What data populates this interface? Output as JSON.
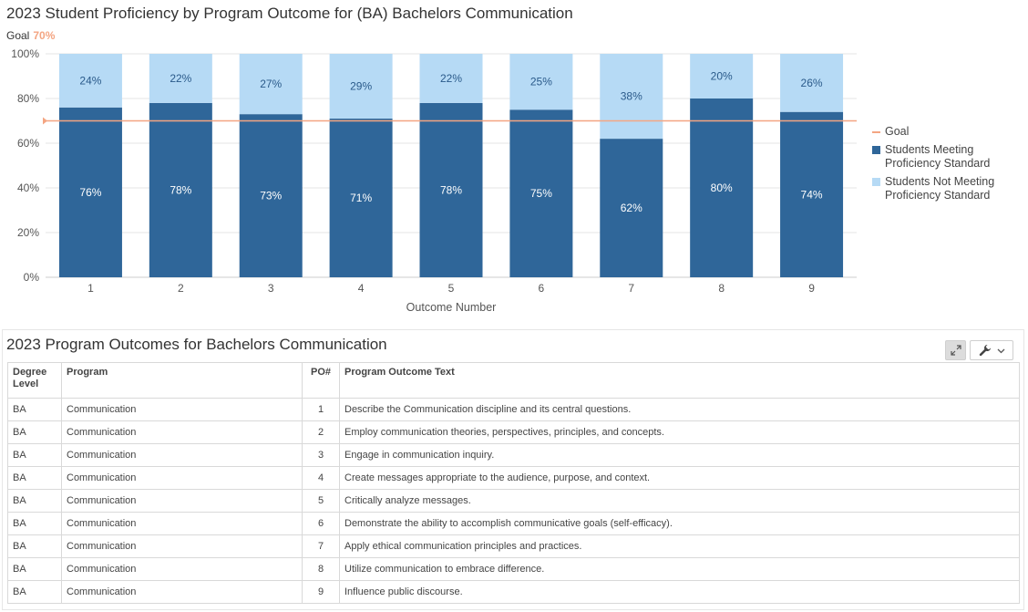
{
  "chart_title": "2023 Student Proficiency by Program Outcome for (BA) Bachelors Communication",
  "goal_caption": {
    "label": "Goal",
    "value": "70%"
  },
  "colors": {
    "meeting": "#2f6699",
    "not_meeting": "#b6daf5",
    "goal": "#f4a582"
  },
  "chart_data": {
    "type": "bar",
    "stacked": true,
    "categories": [
      "1",
      "2",
      "3",
      "4",
      "5",
      "6",
      "7",
      "8",
      "9"
    ],
    "series": [
      {
        "name": "Students Meeting Proficiency Standard",
        "values": [
          76,
          78,
          73,
          71,
          78,
          75,
          62,
          80,
          74
        ],
        "labels": [
          "76%",
          "78%",
          "73%",
          "71%",
          "78%",
          "75%",
          "62%",
          "80%",
          "74%"
        ]
      },
      {
        "name": "Students Not Meeting Proficiency Standard",
        "values": [
          24,
          22,
          27,
          29,
          22,
          25,
          38,
          20,
          26
        ],
        "labels": [
          "24%",
          "22%",
          "27%",
          "29%",
          "22%",
          "25%",
          "38%",
          "20%",
          "26%"
        ]
      }
    ],
    "goal": {
      "name": "Goal",
      "value": 70
    },
    "xlabel": "Outcome Number",
    "ylabel": "",
    "ylim": [
      0,
      100
    ],
    "yticks": [
      0,
      20,
      40,
      60,
      80,
      100
    ],
    "ytick_labels": [
      "0%",
      "20%",
      "40%",
      "60%",
      "80%",
      "100%"
    ],
    "grid": true,
    "legend_position": "right"
  },
  "legend": {
    "goal": "Goal",
    "meeting": "Students Meeting Proficiency Standard",
    "not_meeting": "Students Not Meeting Proficiency Standard"
  },
  "table": {
    "title": "2023 Program Outcomes for Bachelors Communication",
    "headers": {
      "degree": "Degree Level",
      "program": "Program",
      "po": "PO#",
      "text": "Program Outcome Text"
    },
    "rows": [
      {
        "degree": "BA",
        "program": "Communication",
        "po": "1",
        "text": "Describe the Communication discipline and its central questions."
      },
      {
        "degree": "BA",
        "program": "Communication",
        "po": "2",
        "text": "Employ communication theories, perspectives, principles, and concepts."
      },
      {
        "degree": "BA",
        "program": "Communication",
        "po": "3",
        "text": "Engage in communication inquiry."
      },
      {
        "degree": "BA",
        "program": "Communication",
        "po": "4",
        "text": "Create messages appropriate to the audience, purpose, and context."
      },
      {
        "degree": "BA",
        "program": "Communication",
        "po": "5",
        "text": "Critically analyze messages."
      },
      {
        "degree": "BA",
        "program": "Communication",
        "po": "6",
        "text": "Demonstrate the ability to accomplish communicative goals (self-efficacy)."
      },
      {
        "degree": "BA",
        "program": "Communication",
        "po": "7",
        "text": "Apply ethical communication principles and practices."
      },
      {
        "degree": "BA",
        "program": "Communication",
        "po": "8",
        "text": "Utilize communication to embrace difference."
      },
      {
        "degree": "BA",
        "program": "Communication",
        "po": "9",
        "text": "Influence public discourse."
      }
    ]
  },
  "icons": {
    "expand": "expand-icon",
    "tools": "wrench-icon",
    "dropdown": "chevron-down-icon"
  }
}
